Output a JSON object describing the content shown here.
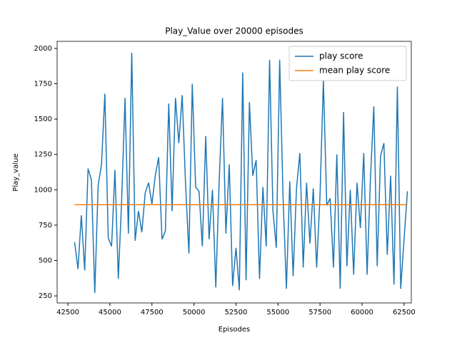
{
  "chart_data": {
    "type": "line",
    "title": "Play_Value over 20000 episodes",
    "x_label": "Episodes",
    "y_label": "Play_value",
    "xlim": [
      41860,
      62930
    ],
    "ylim": [
      200,
      2050
    ],
    "xticks": [
      42500,
      45000,
      47500,
      50000,
      52500,
      55000,
      57500,
      60000,
      62500
    ],
    "yticks": [
      250,
      500,
      750,
      1000,
      1250,
      1500,
      1750,
      2000
    ],
    "legend": "upper right",
    "grid": false,
    "series": [
      {
        "name": "play score",
        "color": "#1f77b4",
        "x": [
          42900,
          43100,
          43300,
          43500,
          43700,
          43900,
          44100,
          44300,
          44500,
          44700,
          44900,
          45100,
          45300,
          45500,
          45700,
          45900,
          46100,
          46300,
          46500,
          46700,
          46900,
          47100,
          47300,
          47500,
          47700,
          47900,
          48100,
          48300,
          48500,
          48700,
          48900,
          49100,
          49300,
          49500,
          49700,
          49900,
          50100,
          50300,
          50500,
          50700,
          50900,
          51100,
          51300,
          51500,
          51700,
          51900,
          52100,
          52300,
          52500,
          52700,
          52900,
          53100,
          53300,
          53500,
          53700,
          53900,
          54100,
          54300,
          54500,
          54700,
          54900,
          55100,
          55300,
          55500,
          55700,
          55900,
          56100,
          56300,
          56500,
          56700,
          56900,
          57100,
          57300,
          57500,
          57700,
          57900,
          58100,
          58300,
          58500,
          58700,
          58900,
          59100,
          59300,
          59500,
          59700,
          59900,
          60100,
          60300,
          60500,
          60700,
          60900,
          61100,
          61300,
          61500,
          61700,
          61900,
          62100,
          62300,
          62500,
          62700
        ],
        "values": [
          630,
          440,
          820,
          430,
          1150,
          1070,
          270,
          1030,
          1180,
          1680,
          660,
          600,
          1140,
          370,
          930,
          1650,
          690,
          1970,
          640,
          850,
          700,
          980,
          1050,
          900,
          1100,
          1230,
          650,
          710,
          1610,
          850,
          1650,
          1330,
          1670,
          1040,
          550,
          1750,
          1020,
          990,
          600,
          1380,
          650,
          1000,
          310,
          1060,
          1650,
          690,
          1180,
          320,
          590,
          290,
          1830,
          360,
          1620,
          1100,
          1210,
          370,
          1020,
          600,
          1920,
          850,
          590,
          1920,
          950,
          300,
          1060,
          390,
          1010,
          1260,
          450,
          1050,
          620,
          1010,
          450,
          960,
          1780,
          890,
          940,
          450,
          1250,
          300,
          1550,
          460,
          1000,
          400,
          1050,
          730,
          1260,
          400,
          1080,
          1590,
          460,
          1240,
          1330,
          540,
          1100,
          330,
          1730,
          300,
          650,
          990
        ]
      },
      {
        "name": "mean play score",
        "color": "#ff7f0e",
        "x": [
          42900,
          62700
        ],
        "values": [
          895,
          895
        ]
      }
    ]
  }
}
